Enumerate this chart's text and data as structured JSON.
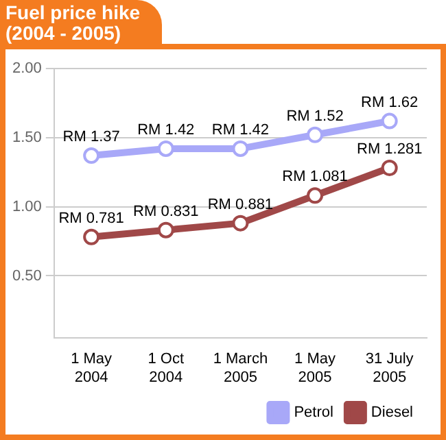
{
  "chart_data": {
    "type": "line",
    "title": "Fuel price hike",
    "subtitle": "(2004 - 2005)",
    "categories": [
      "1 May 2004",
      "1 Oct 2004",
      "1 March 2005",
      "1 May 2005",
      "31 July 2005"
    ],
    "series": [
      {
        "name": "Petrol",
        "color": "#a8a8f8",
        "values": [
          1.37,
          1.42,
          1.42,
          1.52,
          1.62
        ],
        "value_labels": [
          "RM 1.37",
          "RM 1.42",
          "RM 1.42",
          "RM 1.52",
          "RM 1.62"
        ]
      },
      {
        "name": "Diesel",
        "color": "#a04848",
        "values": [
          0.781,
          0.831,
          0.881,
          1.081,
          1.281
        ],
        "value_labels": [
          "RM 0.781",
          "RM 0.831",
          "RM 0.881",
          "RM 1.081",
          "RM 1.281"
        ]
      }
    ],
    "ylim": [
      0.05,
      2.0
    ],
    "yticks": [
      {
        "value": 0.5,
        "label": "0.50"
      },
      {
        "value": 1.0,
        "label": "1.00"
      },
      {
        "value": 1.5,
        "label": "1.50"
      },
      {
        "value": 2.0,
        "label": "2.00"
      }
    ],
    "grid": "y",
    "legend": "bottom right",
    "marker": "circle",
    "line_style": "solid"
  }
}
